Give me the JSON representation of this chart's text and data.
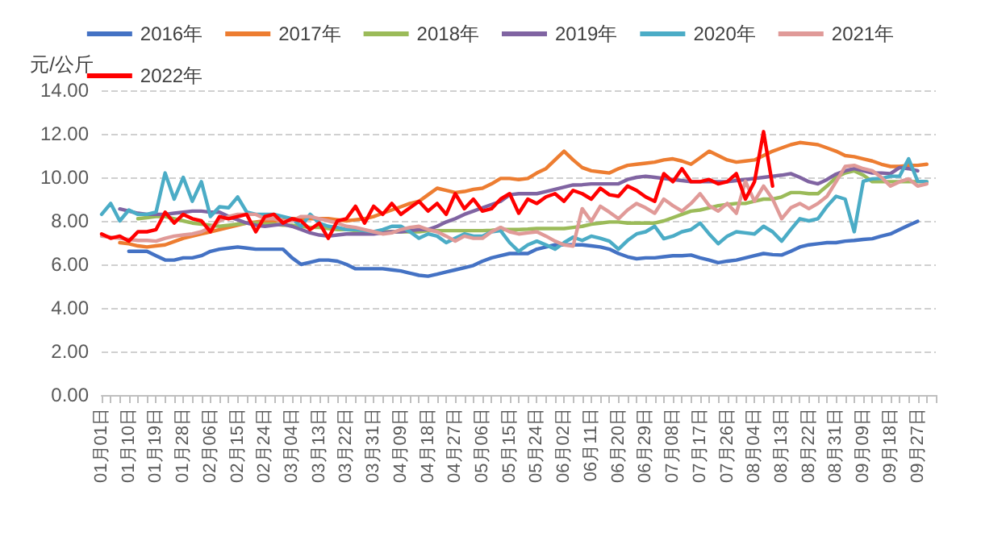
{
  "chart_data": {
    "type": "line",
    "ylabel": "元/公斤",
    "categories": [
      "01月01日",
      null,
      null,
      "01月10日",
      null,
      null,
      "01月19日",
      null,
      null,
      "01月28日",
      null,
      null,
      "02月06日",
      null,
      null,
      "02月15日",
      null,
      null,
      "02月24日",
      null,
      null,
      "03月04日",
      null,
      null,
      "03月13日",
      null,
      null,
      "03月22日",
      null,
      null,
      "03月31日",
      null,
      null,
      "04月09日",
      null,
      null,
      "04月18日",
      null,
      null,
      "04月27日",
      null,
      null,
      "05月06日",
      null,
      null,
      "05月15日",
      null,
      null,
      "05月24日",
      null,
      null,
      "06月02日",
      null,
      null,
      "06月11日",
      null,
      null,
      "06月20日",
      null,
      null,
      "06月29日",
      null,
      null,
      "07月08日",
      null,
      null,
      "07月17日",
      null,
      null,
      "07月26日",
      null,
      null,
      "08月04日",
      null,
      null,
      "08月13日",
      null,
      null,
      "08月22日",
      null,
      null,
      "08月31日",
      null,
      null,
      "09月09日",
      null,
      null,
      "09月18日",
      null,
      null,
      "09月27日",
      null,
      null
    ],
    "series": [
      {
        "name": "2016年",
        "color": "#4472c4",
        "values": [
          null,
          null,
          null,
          6.6,
          6.6,
          6.6,
          6.4,
          6.2,
          6.2,
          6.3,
          6.3,
          6.4,
          6.6,
          6.7,
          6.75,
          6.8,
          6.75,
          6.7,
          6.7,
          6.7,
          6.7,
          6.3,
          6.0,
          6.1,
          6.2,
          6.2,
          6.15,
          6.0,
          5.8,
          5.8,
          5.8,
          5.8,
          5.75,
          5.7,
          5.6,
          5.5,
          5.46,
          5.55,
          5.65,
          5.75,
          5.85,
          5.95,
          6.15,
          6.3,
          6.4,
          6.5,
          6.5,
          6.5,
          6.7,
          6.8,
          6.9,
          6.9,
          6.9,
          6.9,
          6.85,
          6.8,
          6.7,
          6.5,
          6.35,
          6.26,
          6.3,
          6.3,
          6.35,
          6.4,
          6.4,
          6.43,
          6.3,
          6.2,
          6.08,
          6.15,
          6.2,
          6.3,
          6.4,
          6.5,
          6.45,
          6.43,
          6.6,
          6.8,
          6.9,
          6.95,
          7.0,
          7.0,
          7.07,
          7.1,
          7.15,
          7.18,
          7.3,
          7.4,
          7.6,
          7.8,
          7.98,
          null,
          null
        ]
      },
      {
        "name": "2017年",
        "color": "#ed7d31",
        "values": [
          null,
          null,
          7.0,
          6.95,
          6.85,
          6.8,
          6.85,
          6.9,
          7.05,
          7.2,
          7.3,
          7.4,
          7.5,
          7.6,
          7.7,
          7.8,
          7.9,
          7.95,
          8.0,
          8.0,
          8.05,
          8.1,
          8.1,
          8.1,
          8.1,
          8.1,
          8.05,
          8.0,
          8.05,
          8.1,
          8.2,
          8.35,
          8.5,
          8.65,
          8.8,
          8.9,
          9.2,
          9.5,
          9.4,
          9.3,
          9.35,
          9.45,
          9.5,
          9.7,
          9.95,
          9.95,
          9.9,
          9.95,
          10.2,
          10.4,
          10.8,
          11.2,
          10.8,
          10.45,
          10.3,
          10.25,
          10.2,
          10.4,
          10.55,
          10.6,
          10.65,
          10.7,
          10.8,
          10.85,
          10.75,
          10.6,
          10.9,
          11.2,
          11.0,
          10.8,
          10.7,
          10.75,
          10.8,
          11.0,
          11.2,
          11.35,
          11.5,
          11.6,
          11.55,
          11.5,
          11.35,
          11.2,
          11.0,
          10.95,
          10.85,
          10.75,
          10.6,
          10.5,
          10.5,
          10.55,
          10.55,
          10.6,
          null
        ]
      },
      {
        "name": "2018年",
        "color": "#9bbb59",
        "values": [
          null,
          null,
          null,
          null,
          8.1,
          8.15,
          8.2,
          8.2,
          8.1,
          8.0,
          7.9,
          7.85,
          7.8,
          7.75,
          7.8,
          7.85,
          7.9,
          7.9,
          7.85,
          7.85,
          7.8,
          7.8,
          7.75,
          7.7,
          7.7,
          7.65,
          7.6,
          7.6,
          7.55,
          7.5,
          7.5,
          7.5,
          7.5,
          7.5,
          7.5,
          7.5,
          7.55,
          7.55,
          7.55,
          7.55,
          7.55,
          7.55,
          7.55,
          7.57,
          7.6,
          7.6,
          7.6,
          7.62,
          7.65,
          7.65,
          7.65,
          7.65,
          7.7,
          7.75,
          7.85,
          7.9,
          7.95,
          7.95,
          7.9,
          7.9,
          7.9,
          7.9,
          8.0,
          8.15,
          8.3,
          8.45,
          8.5,
          8.6,
          8.7,
          8.75,
          8.8,
          8.8,
          8.9,
          9.0,
          9.0,
          9.1,
          9.3,
          9.3,
          9.25,
          9.25,
          9.6,
          10.0,
          10.2,
          10.3,
          10.1,
          9.8,
          9.8,
          9.8,
          9.8,
          9.8,
          9.8,
          9.8,
          null
        ]
      },
      {
        "name": "2019年",
        "color": "#8064a2",
        "values": [
          null,
          null,
          8.55,
          8.45,
          8.35,
          8.3,
          8.3,
          8.3,
          8.35,
          8.4,
          8.45,
          8.45,
          8.4,
          8.4,
          8.2,
          8.05,
          7.9,
          7.8,
          7.75,
          7.8,
          7.85,
          7.75,
          7.6,
          7.45,
          7.35,
          7.3,
          7.35,
          7.4,
          7.4,
          7.4,
          7.4,
          7.45,
          7.5,
          7.5,
          7.55,
          7.6,
          7.6,
          7.75,
          7.95,
          8.1,
          8.3,
          8.45,
          8.6,
          8.75,
          8.9,
          9.2,
          9.25,
          9.25,
          9.25,
          9.35,
          9.45,
          9.55,
          9.65,
          9.66,
          9.7,
          9.7,
          9.7,
          9.7,
          9.9,
          10.0,
          10.05,
          10.0,
          9.95,
          9.9,
          9.85,
          9.8,
          9.8,
          9.8,
          9.8,
          9.8,
          9.85,
          9.9,
          9.95,
          10.0,
          10.05,
          10.1,
          10.17,
          10.0,
          9.8,
          9.7,
          9.9,
          10.15,
          10.3,
          10.4,
          10.3,
          10.2,
          10.2,
          10.17,
          10.45,
          10.4,
          10.3,
          null,
          null
        ]
      },
      {
        "name": "2020年",
        "color": "#4bacc6",
        "values": [
          8.3,
          8.8,
          8.0,
          8.5,
          8.3,
          8.3,
          8.4,
          10.2,
          9.0,
          10.0,
          8.9,
          9.8,
          8.2,
          8.65,
          8.6,
          9.1,
          8.4,
          8.3,
          8.3,
          8.3,
          8.2,
          8.1,
          7.75,
          8.3,
          7.9,
          7.75,
          7.7,
          7.6,
          7.6,
          7.55,
          7.5,
          7.6,
          7.75,
          7.75,
          7.5,
          7.2,
          7.4,
          7.3,
          7.0,
          7.2,
          7.4,
          7.3,
          7.3,
          7.5,
          7.55,
          7.0,
          6.6,
          6.9,
          7.07,
          6.9,
          6.7,
          7.0,
          7.25,
          7.1,
          7.3,
          7.2,
          7.07,
          6.7,
          7.1,
          7.4,
          7.5,
          7.75,
          7.18,
          7.3,
          7.5,
          7.6,
          7.9,
          7.4,
          6.95,
          7.3,
          7.5,
          7.45,
          7.4,
          7.75,
          7.5,
          7.07,
          7.6,
          8.1,
          8.0,
          8.1,
          8.67,
          9.13,
          9.0,
          7.5,
          9.82,
          9.93,
          9.95,
          10.05,
          10.05,
          10.85,
          9.82,
          9.8,
          null
        ]
      },
      {
        "name": "2021年",
        "color": "#e09a98",
        "values": [
          7.3,
          7.25,
          7.2,
          7.15,
          7.1,
          7.1,
          7.07,
          7.2,
          7.3,
          7.35,
          7.4,
          7.5,
          7.7,
          8.0,
          8.2,
          8.3,
          8.3,
          8.3,
          8.1,
          8.1,
          8.0,
          8.0,
          8.2,
          8.2,
          8.1,
          8.0,
          7.9,
          7.75,
          7.7,
          7.6,
          7.5,
          7.4,
          7.45,
          7.6,
          7.7,
          7.75,
          7.6,
          7.5,
          7.3,
          7.07,
          7.3,
          7.2,
          7.2,
          7.5,
          7.7,
          7.5,
          7.4,
          7.45,
          7.5,
          7.3,
          7.07,
          6.9,
          6.84,
          8.56,
          7.98,
          8.67,
          8.4,
          8.1,
          8.5,
          8.8,
          8.6,
          8.35,
          9.0,
          8.7,
          8.45,
          8.8,
          9.25,
          8.7,
          8.45,
          8.8,
          8.35,
          9.82,
          8.9,
          9.6,
          9.0,
          8.1,
          8.6,
          8.8,
          8.56,
          8.8,
          9.13,
          9.8,
          10.5,
          10.55,
          10.4,
          10.3,
          10.0,
          9.6,
          9.8,
          9.93,
          9.6,
          9.7,
          null
        ]
      },
      {
        "name": "2022年",
        "color": "#ff0000",
        "values": [
          7.4,
          7.2,
          7.3,
          7.07,
          7.5,
          7.5,
          7.6,
          8.4,
          7.9,
          8.3,
          8.1,
          8.0,
          7.5,
          8.2,
          8.1,
          8.2,
          8.3,
          7.5,
          8.2,
          8.3,
          7.9,
          8.1,
          8.0,
          7.6,
          7.9,
          7.2,
          8.0,
          8.1,
          8.67,
          7.9,
          8.67,
          8.3,
          8.8,
          8.3,
          8.6,
          8.9,
          8.45,
          8.8,
          8.3,
          9.25,
          8.56,
          9.0,
          8.45,
          8.56,
          9.0,
          9.25,
          8.35,
          9.0,
          8.8,
          9.1,
          9.25,
          8.9,
          9.4,
          9.25,
          9.0,
          9.5,
          9.2,
          9.13,
          9.6,
          9.4,
          9.1,
          8.9,
          10.17,
          9.8,
          10.4,
          9.8,
          9.8,
          9.9,
          9.7,
          9.8,
          10.17,
          9.0,
          9.8,
          12.1,
          9.6,
          null,
          null,
          null,
          null,
          null,
          null,
          null,
          null,
          null,
          null,
          null,
          null,
          null,
          null,
          null,
          null,
          null,
          null
        ]
      }
    ],
    "ylim": [
      0,
      14
    ],
    "yticks": [
      {
        "value": 0,
        "label": "0.00"
      },
      {
        "value": 2,
        "label": "2.00"
      },
      {
        "value": 4,
        "label": "4.00"
      },
      {
        "value": 6,
        "label": "6.00"
      },
      {
        "value": 8,
        "label": "8.00"
      },
      {
        "value": 10,
        "label": "10.00"
      },
      {
        "value": 12,
        "label": "12.00"
      },
      {
        "value": 14,
        "label": "14.00"
      }
    ],
    "grid": "y",
    "legend": "top",
    "marker": "none",
    "line_style": "solid"
  }
}
